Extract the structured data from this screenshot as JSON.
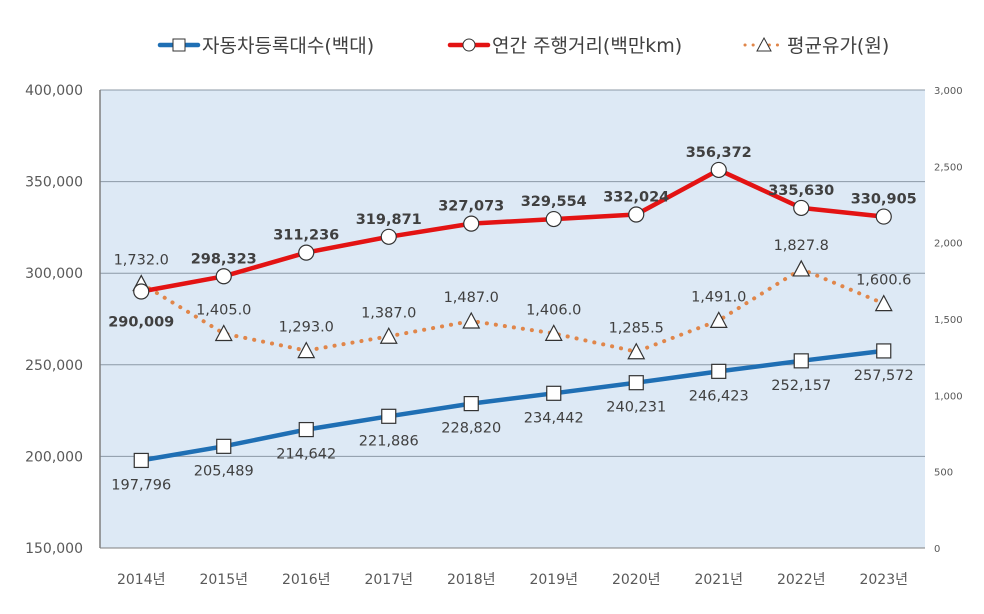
{
  "chart_data": {
    "type": "line",
    "categories": [
      "2014년",
      "2015년",
      "2016년",
      "2017년",
      "2018년",
      "2019년",
      "2020년",
      "2021년",
      "2022년",
      "2023년"
    ],
    "y_left": {
      "ylim": [
        150000,
        400000
      ],
      "ticks": [
        "150,000",
        "200,000",
        "250,000",
        "300,000",
        "350,000",
        "400,000"
      ],
      "tick_values": [
        150000,
        200000,
        250000,
        300000,
        350000,
        400000
      ]
    },
    "y_right": {
      "ylim": [
        0,
        3000
      ],
      "ticks": [
        "0",
        "500",
        "1,000",
        "1,500",
        "2,000",
        "2,500",
        "3,000"
      ],
      "tick_values": [
        0,
        500,
        1000,
        1500,
        2000,
        2500,
        3000
      ]
    },
    "grid": true,
    "legend_position": "top",
    "plot_background": "#dde9f5",
    "series": [
      {
        "name": "자동차등록대수(백대)",
        "axis": "left",
        "color": "#1f6fb4",
        "style": "solid",
        "marker": "square",
        "values": [
          197796,
          205489,
          214642,
          221886,
          228820,
          234442,
          240231,
          246423,
          252157,
          257572
        ],
        "labels": [
          "197,796",
          "205,489",
          "214,642",
          "221,886",
          "228,820",
          "234,442",
          "240,231",
          "246,423",
          "252,157",
          "257,572"
        ]
      },
      {
        "name": "연간 주행거리(백만km)",
        "axis": "left",
        "color": "#e31313",
        "style": "solid",
        "marker": "circle",
        "values": [
          290009,
          298323,
          311236,
          319871,
          327073,
          329554,
          332024,
          356372,
          335630,
          330905
        ],
        "labels": [
          "290,009",
          "298,323",
          "311,236",
          "319,871",
          "327,073",
          "329,554",
          "332,024",
          "356,372",
          "335,630",
          "330,905"
        ]
      },
      {
        "name": "평균유가(원)",
        "axis": "right",
        "color": "#e0864a",
        "style": "dotted",
        "marker": "triangle",
        "values": [
          1732.0,
          1405.0,
          1293.0,
          1387.0,
          1487.0,
          1406.0,
          1285.5,
          1491.0,
          1827.8,
          1600.6
        ],
        "labels": [
          "1,732.0",
          "1,405.0",
          "1,293.0",
          "1,387.0",
          "1,487.0",
          "1,406.0",
          "1,285.5",
          "1,491.0",
          "1,827.8",
          "1,600.6"
        ]
      }
    ]
  }
}
